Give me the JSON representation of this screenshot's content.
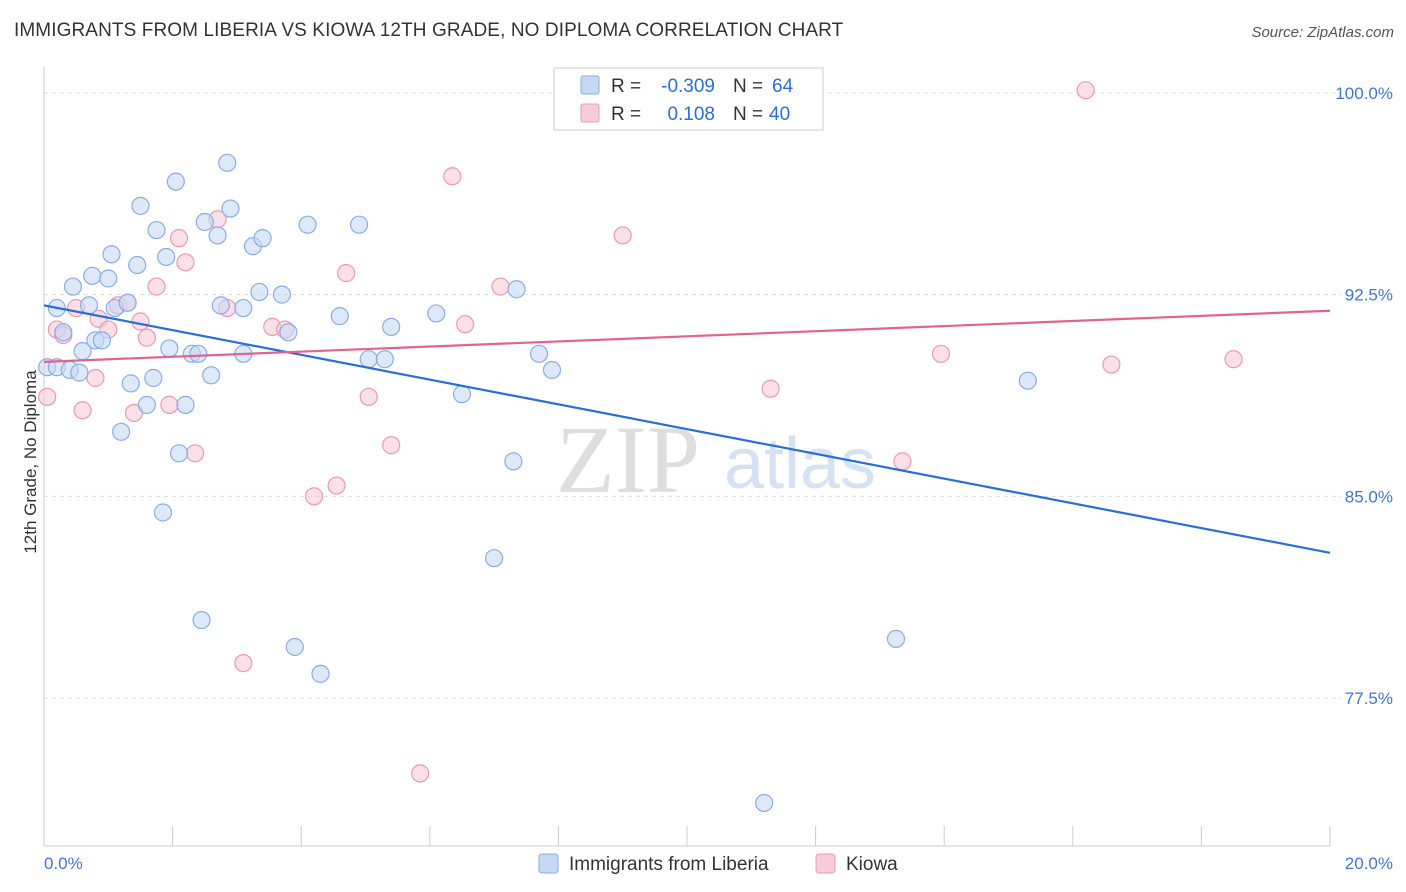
{
  "title": "IMMIGRANTS FROM LIBERIA VS KIOWA 12TH GRADE, NO DIPLOMA CORRELATION CHART",
  "source": "Source: ZipAtlas.com",
  "watermark": {
    "zip": "ZIP",
    "atlas": "atlas"
  },
  "colors": {
    "blue_fill": "#c6d9f4",
    "blue_stroke": "#88aee6",
    "blue_line": "#2a6fd6",
    "pink_fill": "#f8cbd8",
    "pink_stroke": "#eb99b3",
    "pink_line": "#e0648f",
    "tick_text": "#3e78cc",
    "grid": "#dcdcdc"
  },
  "stats_box": {
    "rows": [
      {
        "r_label": "R =",
        "r_value": "-0.309",
        "n_label": "N =",
        "n_value": "64"
      },
      {
        "r_label": "R =",
        "r_value": "0.108",
        "n_label": "N =",
        "n_value": "40"
      }
    ]
  },
  "chart_data": {
    "type": "scatter",
    "title": "IMMIGRANTS FROM LIBERIA VS KIOWA 12TH GRADE, NO DIPLOMA CORRELATION CHART",
    "xlabel": "",
    "ylabel": "12th Grade, No Diploma",
    "xlim": [
      0,
      20
    ],
    "ylim": [
      72.0,
      101.0
    ],
    "x_tick_labels": [
      "0.0%",
      "20.0%"
    ],
    "y_ticks": [
      77.5,
      85.0,
      92.5,
      100.0
    ],
    "y_tick_labels": [
      "77.5%",
      "85.0%",
      "92.5%",
      "100.0%"
    ],
    "grid": true,
    "legend_position": "bottom",
    "series": [
      {
        "name": "Immigrants from Liberia",
        "regression": {
          "x": [
            0,
            20
          ],
          "y": [
            92.1,
            82.9
          ]
        },
        "points": [
          [
            0.05,
            89.8
          ],
          [
            0.2,
            89.8
          ],
          [
            0.2,
            92.0
          ],
          [
            0.3,
            91.1
          ],
          [
            0.4,
            89.7
          ],
          [
            0.45,
            92.8
          ],
          [
            0.55,
            89.6
          ],
          [
            0.6,
            90.4
          ],
          [
            0.7,
            92.1
          ],
          [
            0.75,
            93.2
          ],
          [
            0.8,
            90.8
          ],
          [
            0.9,
            90.8
          ],
          [
            1.0,
            93.1
          ],
          [
            1.05,
            94.0
          ],
          [
            1.1,
            92.0
          ],
          [
            1.2,
            87.4
          ],
          [
            1.3,
            92.2
          ],
          [
            1.35,
            89.2
          ],
          [
            1.45,
            93.6
          ],
          [
            1.5,
            95.8
          ],
          [
            1.6,
            88.4
          ],
          [
            1.7,
            89.4
          ],
          [
            1.75,
            94.9
          ],
          [
            1.85,
            84.4
          ],
          [
            1.9,
            93.9
          ],
          [
            1.95,
            90.5
          ],
          [
            2.05,
            96.7
          ],
          [
            2.1,
            86.6
          ],
          [
            2.2,
            88.4
          ],
          [
            2.3,
            90.3
          ],
          [
            2.4,
            90.3
          ],
          [
            2.45,
            80.4
          ],
          [
            2.5,
            95.2
          ],
          [
            2.6,
            89.5
          ],
          [
            2.7,
            94.7
          ],
          [
            2.75,
            92.1
          ],
          [
            2.85,
            97.4
          ],
          [
            2.9,
            95.7
          ],
          [
            3.1,
            90.3
          ],
          [
            3.1,
            92.0
          ],
          [
            3.25,
            94.3
          ],
          [
            3.35,
            92.6
          ],
          [
            3.4,
            94.6
          ],
          [
            3.7,
            92.5
          ],
          [
            3.8,
            91.1
          ],
          [
            3.9,
            79.4
          ],
          [
            4.1,
            95.1
          ],
          [
            4.3,
            78.4
          ],
          [
            4.6,
            91.7
          ],
          [
            4.9,
            95.1
          ],
          [
            5.05,
            90.1
          ],
          [
            5.3,
            90.1
          ],
          [
            5.4,
            91.3
          ],
          [
            6.1,
            91.8
          ],
          [
            6.5,
            88.8
          ],
          [
            7.0,
            82.7
          ],
          [
            7.3,
            86.3
          ],
          [
            7.35,
            92.7
          ],
          [
            7.7,
            90.3
          ],
          [
            7.9,
            89.7
          ],
          [
            9.4,
            100.4
          ],
          [
            11.2,
            73.6
          ],
          [
            13.25,
            79.7
          ],
          [
            15.3,
            89.3
          ]
        ]
      },
      {
        "name": "Kiowa",
        "regression": {
          "x": [
            0,
            20
          ],
          "y": [
            90.0,
            91.9
          ]
        },
        "points": [
          [
            0.05,
            88.7
          ],
          [
            0.2,
            91.2
          ],
          [
            0.3,
            91.0
          ],
          [
            0.5,
            92.0
          ],
          [
            0.6,
            88.2
          ],
          [
            0.8,
            89.4
          ],
          [
            0.85,
            91.6
          ],
          [
            1.0,
            91.2
          ],
          [
            1.15,
            92.1
          ],
          [
            1.3,
            92.2
          ],
          [
            1.4,
            88.1
          ],
          [
            1.5,
            91.5
          ],
          [
            1.6,
            90.9
          ],
          [
            1.75,
            92.8
          ],
          [
            1.95,
            88.4
          ],
          [
            2.1,
            94.6
          ],
          [
            2.2,
            93.7
          ],
          [
            2.35,
            86.6
          ],
          [
            2.7,
            95.3
          ],
          [
            2.85,
            92.0
          ],
          [
            3.1,
            78.8
          ],
          [
            3.55,
            91.3
          ],
          [
            3.75,
            91.2
          ],
          [
            4.2,
            85.0
          ],
          [
            4.55,
            85.4
          ],
          [
            4.7,
            93.3
          ],
          [
            5.05,
            88.7
          ],
          [
            5.4,
            86.9
          ],
          [
            5.85,
            74.7
          ],
          [
            6.35,
            96.9
          ],
          [
            6.55,
            91.4
          ],
          [
            7.1,
            92.8
          ],
          [
            9.0,
            94.7
          ],
          [
            9.05,
            100.3
          ],
          [
            11.3,
            89.0
          ],
          [
            13.35,
            86.3
          ],
          [
            13.95,
            90.3
          ],
          [
            16.2,
            100.1
          ],
          [
            16.6,
            89.9
          ],
          [
            18.5,
            90.1
          ]
        ]
      }
    ]
  }
}
